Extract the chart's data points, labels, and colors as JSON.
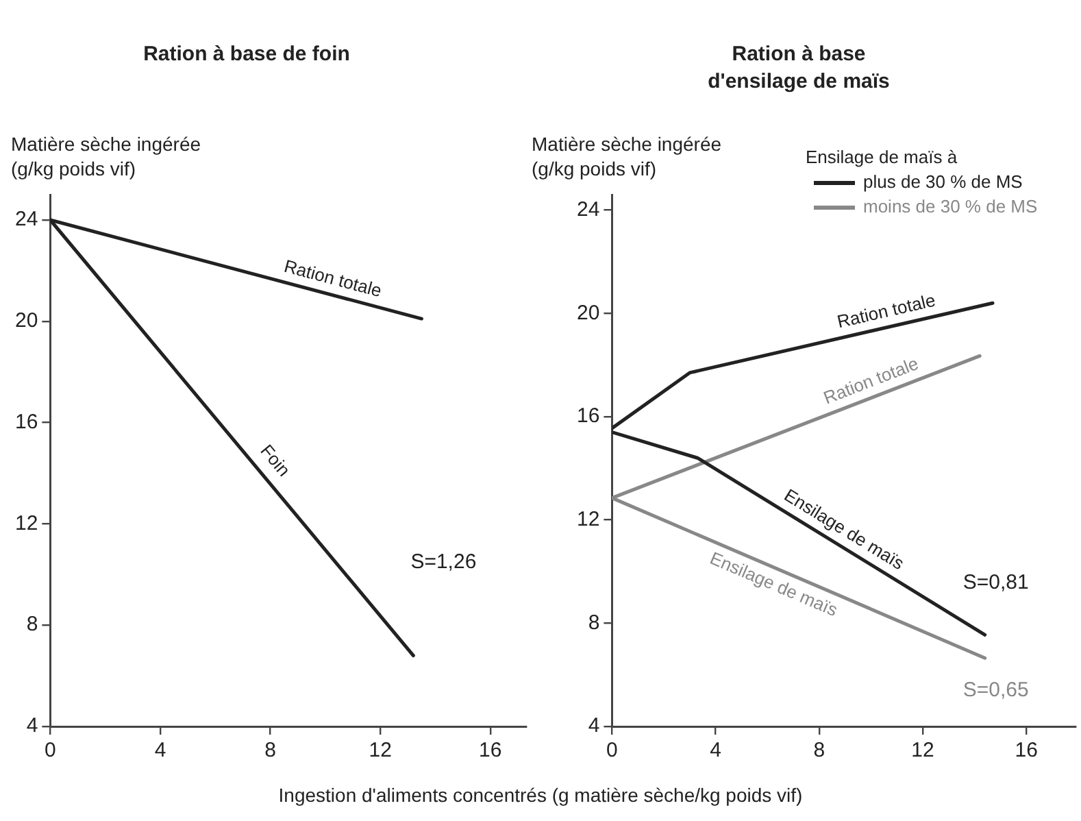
{
  "chart_data": [
    {
      "type": "line",
      "title": "Ration à base de foin",
      "ylabel": "Matière sèche ingérée (g/kg poids vif)",
      "xlabel": "Ingestion d'aliments concentrés (g matière sèche/kg poids vif)",
      "marker": "none",
      "grid": false,
      "legend": false,
      "series": [
        {
          "color": "#222222",
          "x": [
            0,
            13.5
          ],
          "values": [
            24,
            20.1
          ]
        },
        {
          "color": "#222222",
          "x": [
            0,
            13.2
          ],
          "values": [
            24,
            6.8
          ]
        }
      ],
      "xlim": [
        0,
        17.3
      ],
      "xticks": [
        0,
        4,
        8,
        12,
        16
      ],
      "ylim": [
        4,
        25
      ],
      "yticks": [
        4,
        8,
        12,
        16,
        20,
        24
      ],
      "annotations": [
        "Ration totale",
        "Foin",
        "S=1,26"
      ]
    },
    {
      "type": "line",
      "title": "Ration à base d'ensilage de maïs",
      "ylabel": "Matière sèche ingérée (g/kg poids vif)",
      "legend_title": "Ensilage de maïs à",
      "marker": "none",
      "grid": false,
      "legend": "top right",
      "series": [
        {
          "name": "plus de  30 % de MS",
          "color": "#222222",
          "x": [
            0,
            3,
            14.7
          ],
          "values": [
            15.55,
            17.7,
            20.4
          ]
        },
        {
          "color": "#222222",
          "x": [
            0,
            3.3,
            14.4
          ],
          "values": [
            15.4,
            14.4,
            7.55
          ]
        },
        {
          "name": "moins de 30 % de MS",
          "color": "#888888",
          "x": [
            0,
            14.2
          ],
          "values": [
            12.85,
            18.35
          ]
        },
        {
          "color": "#888888",
          "x": [
            0,
            14.4
          ],
          "values": [
            12.85,
            6.65
          ]
        }
      ],
      "xlim": [
        0,
        17.9
      ],
      "xticks": [
        0,
        4,
        8,
        12,
        16
      ],
      "ylim": [
        4,
        24.6
      ],
      "yticks": [
        4,
        8,
        12,
        16,
        20,
        24
      ],
      "annotations": [
        "Ration totale",
        "Ensilage de maïs",
        "Ration totale",
        "Ensilage de maïs",
        "S=0,81",
        "S=0,65"
      ]
    }
  ]
}
